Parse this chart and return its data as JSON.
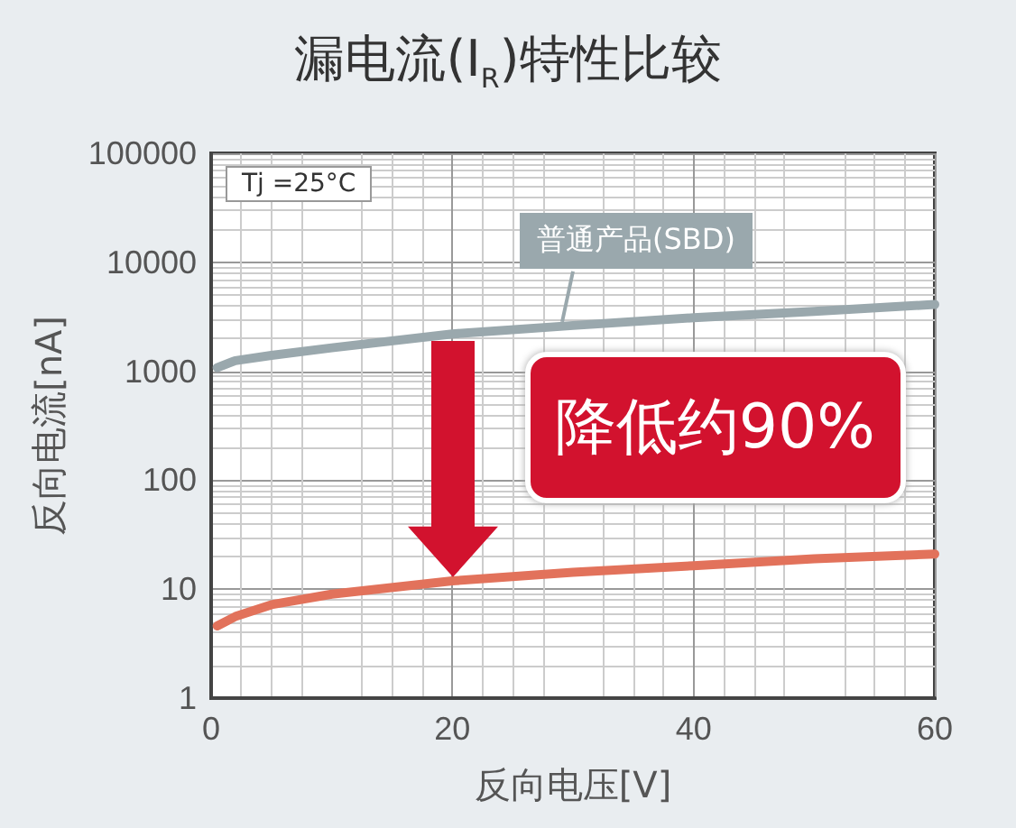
{
  "chart_data": {
    "type": "line",
    "title": "漏电流(I$_{R}$)特性比较",
    "xlabel": "反向电压[V]",
    "ylabel": "反向电流[nA]",
    "x": [
      0.5,
      2,
      5,
      10,
      20,
      30,
      40,
      50,
      60
    ],
    "series": [
      {
        "name": "普通产品(SBD)",
        "color": "#9aa8ad",
        "values": [
          1080,
          1250,
          1400,
          1640,
          2200,
          2630,
          3100,
          3550,
          4100
        ]
      },
      {
        "color": "#e2725b",
        "values": [
          4.6,
          5.6,
          7.2,
          9,
          11.9,
          14.3,
          16.4,
          19,
          21
        ]
      }
    ],
    "xlim": [
      0,
      60
    ],
    "xticks": [
      0,
      20,
      40,
      60
    ],
    "ylim": [
      1,
      100000
    ],
    "yticks": [
      1,
      10,
      100,
      1000,
      10000,
      100000
    ],
    "log": "y",
    "grid": true,
    "legend": false,
    "marker": "none",
    "line_style": "solid",
    "annotations": [
      "Tj =25°C",
      "降低约90%"
    ]
  }
}
